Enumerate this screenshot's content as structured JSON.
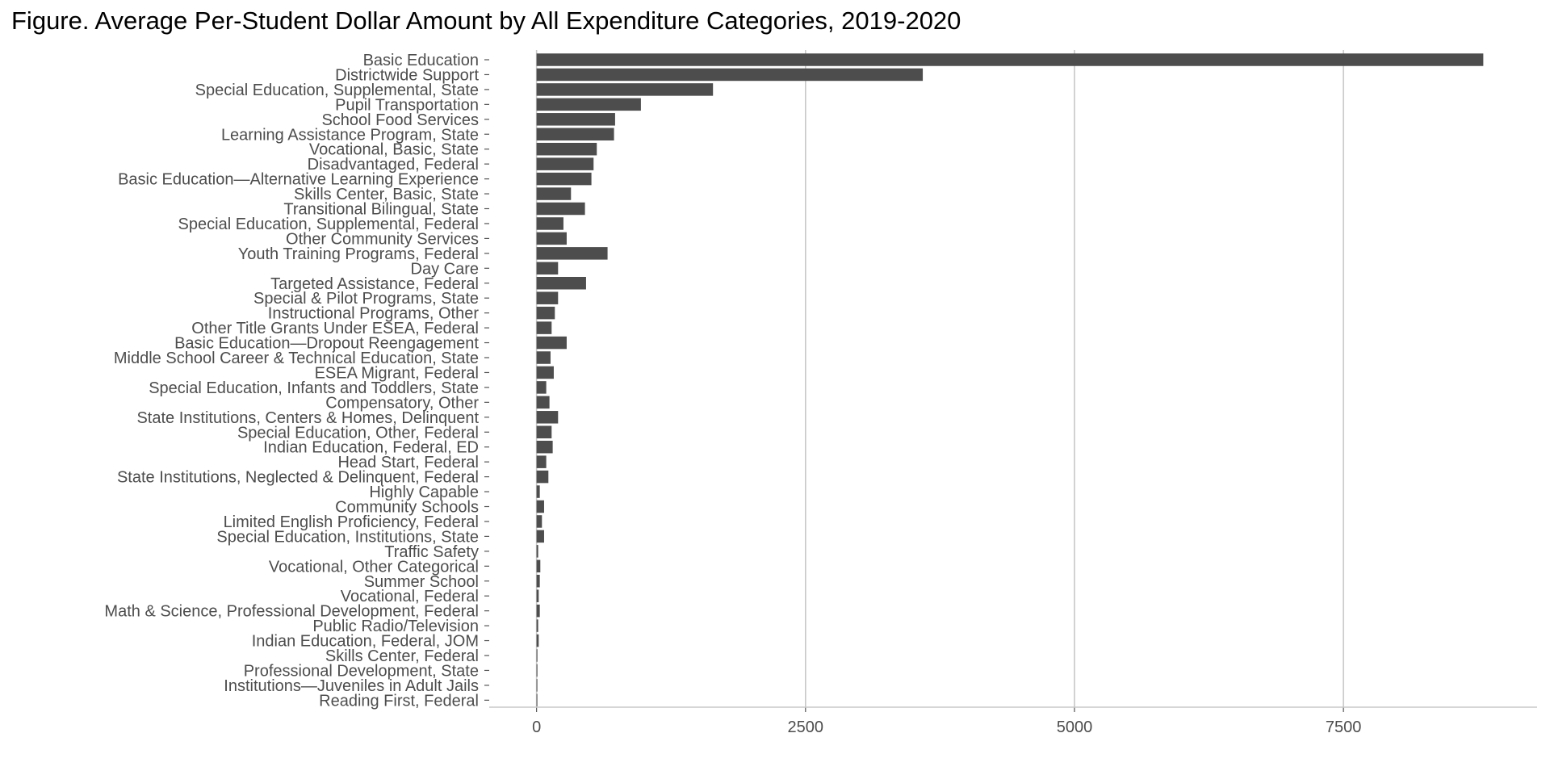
{
  "chart_data": {
    "type": "bar",
    "orientation": "horizontal",
    "title": "Figure. Average Per-Student Dollar Amount by All Expenditure Categories, 2019-2020",
    "xlabel": "",
    "ylabel": "",
    "xlim": [
      -440,
      9300
    ],
    "xticks": [
      0,
      2500,
      5000,
      7500
    ],
    "tick_labels": [
      "0",
      "2500",
      "5000",
      "7500"
    ],
    "grid": "vertical major lines only",
    "legend": "none",
    "bar_color": "#4d4d4d",
    "grid_color": "#c8c8c8",
    "categories": [
      "Basic Education",
      "Districtwide Support",
      "Special Education, Supplemental, State",
      "Pupil Transportation",
      "School Food Services",
      "Learning Assistance Program, State",
      "Vocational, Basic, State",
      "Disadvantaged, Federal",
      "Basic Education—Alternative Learning Experience",
      "Skills Center, Basic, State",
      "Transitional Bilingual, State",
      "Special Education, Supplemental, Federal",
      "Other Community Services",
      "Youth Training Programs, Federal",
      "Day Care",
      "Targeted Assistance, Federal",
      "Special & Pilot Programs, State",
      "Instructional Programs, Other",
      "Other Title Grants Under ESEA, Federal",
      "Basic Education—Dropout Reengagement",
      "Middle School Career & Technical Education, State",
      "ESEA Migrant, Federal",
      "Special Education, Infants and Toddlers, State",
      "Compensatory, Other",
      "State Institutions, Centers & Homes, Delinquent",
      "Special Education, Other, Federal",
      "Indian Education, Federal, ED",
      "Head Start, Federal",
      "State Institutions, Neglected & Delinquent, Federal",
      "Highly Capable",
      "Community Schools",
      "Limited English Proficiency, Federal",
      "Special Education, Institutions, State",
      "Traffic Safety",
      "Vocational, Other Categorical",
      "Summer School",
      "Vocational, Federal",
      "Math & Science, Professional Development, Federal",
      "Public Radio/Television",
      "Indian Education, Federal, JOM",
      "Skills Center, Federal",
      "Professional Development, State",
      "Institutions—Juveniles in Adult Jails",
      "Reading First, Federal"
    ],
    "values": [
      8800,
      3590,
      1640,
      970,
      730,
      720,
      560,
      530,
      510,
      320,
      450,
      250,
      280,
      660,
      200,
      460,
      200,
      170,
      140,
      280,
      130,
      160,
      90,
      120,
      200,
      140,
      150,
      90,
      110,
      30,
      70,
      50,
      70,
      15,
      35,
      30,
      20,
      30,
      15,
      20,
      8,
      8,
      5,
      2
    ]
  }
}
